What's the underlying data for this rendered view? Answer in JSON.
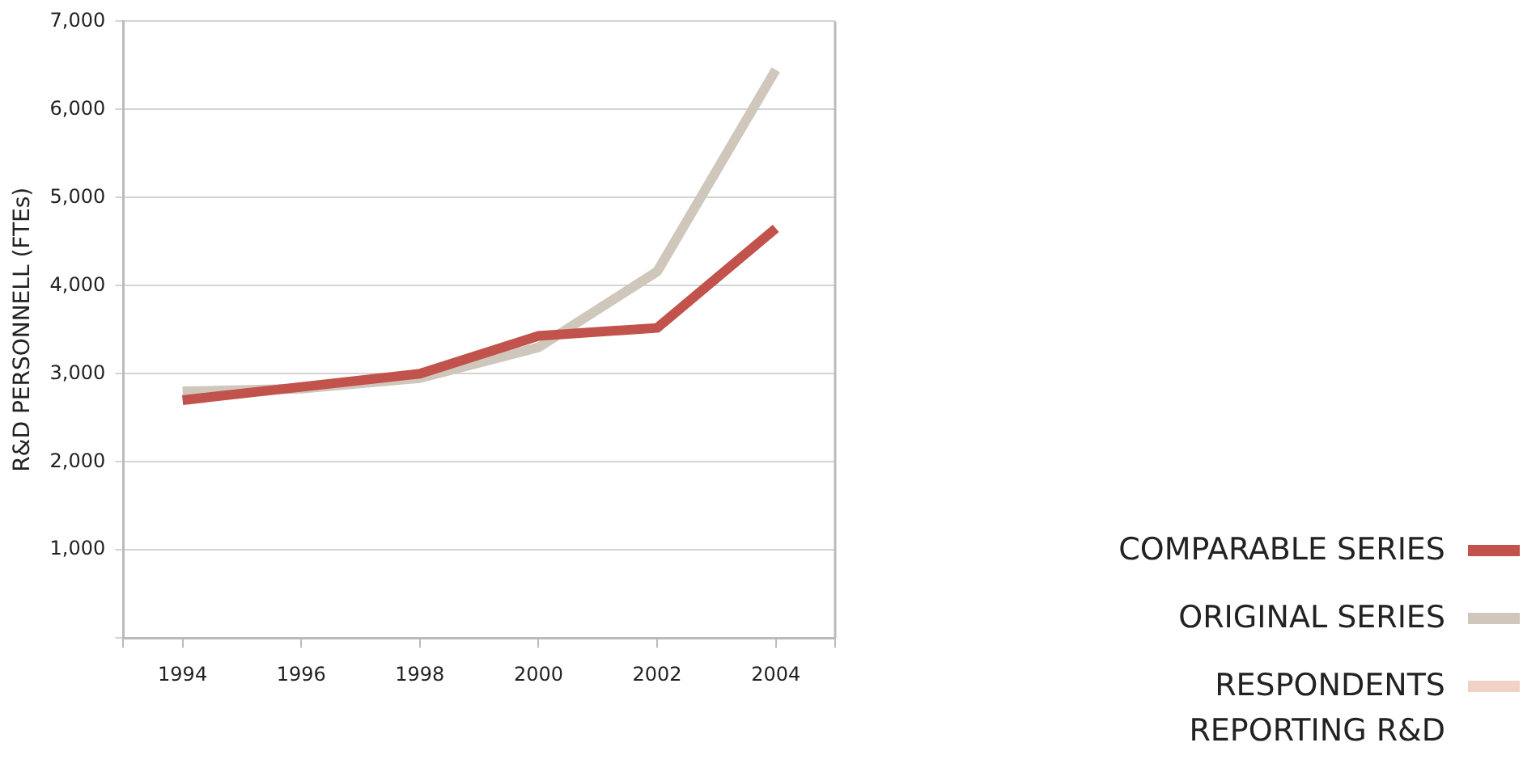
{
  "chart_data": {
    "type": "line",
    "ylabel": "R&D PERSONNELL (FTEs)",
    "x": [
      1994,
      1996,
      1998,
      2000,
      2002,
      2004
    ],
    "xlim": [
      1993,
      2005
    ],
    "xticks": [
      1994,
      1996,
      1998,
      2000,
      2002,
      2004
    ],
    "ylim": [
      0,
      7000
    ],
    "yticks": [
      {
        "value": 0,
        "label": null
      },
      {
        "value": 1000,
        "label": "1,000"
      },
      {
        "value": 2000,
        "label": "2,000"
      },
      {
        "value": 3000,
        "label": "3,000"
      },
      {
        "value": 4000,
        "label": "4,000"
      },
      {
        "value": 5000,
        "label": "5,000"
      },
      {
        "value": 6000,
        "label": "6,000"
      },
      {
        "value": 7000,
        "label": "7,000"
      }
    ],
    "grid": "y",
    "legend": "bottom right",
    "marker": "none",
    "line_style": "solid",
    "series": [
      {
        "name": "COMPARABLE SERIES",
        "color": "#c1524c",
        "values": [
          2700,
          2850,
          3000,
          3430,
          3520,
          4650
        ]
      },
      {
        "name": "ORIGINAL SERIES",
        "color": "#cfc7bb",
        "values": [
          2800,
          2830,
          2950,
          3300,
          4160,
          6450
        ]
      },
      {
        "name": "RESPONDENTS REPORTING R&D",
        "color": "#f0d3c5",
        "values": [
          null,
          null,
          null,
          null,
          null,
          null
        ]
      }
    ]
  }
}
